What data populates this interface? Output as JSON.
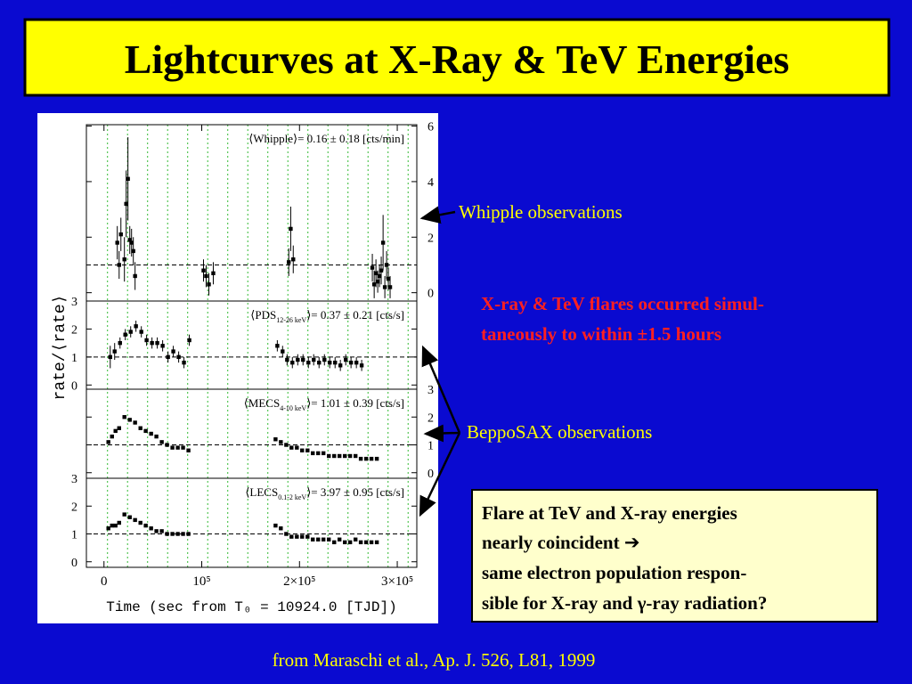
{
  "title": "Lightcurves at X-Ray & TeV Energies",
  "figure": {
    "y_label": "rate/⟨rate⟩",
    "x_label": "Time (sec from T₀ = 10924.0 [TJD])",
    "xlim": [
      -18000,
      320000
    ],
    "xticks": [
      0,
      {
        "value": 100000,
        "label": "10⁵"
      },
      {
        "value": 200000,
        "label": "2×10⁵"
      },
      {
        "value": 300000,
        "label": "3×10⁵"
      }
    ],
    "ref_line": 1,
    "guide_lines_x": [
      3600,
      24100,
      44600,
      65100,
      85600,
      106100,
      126600,
      147100,
      167600,
      188100,
      208600,
      229100,
      249600,
      270100,
      290600,
      311100
    ],
    "panels": [
      {
        "label_name": "⟨Whipple⟩= 0.16 ± 0.18 [cts/min]",
        "ylim": [
          -0.3,
          6.05
        ],
        "yticks": [
          0,
          2,
          4,
          6
        ],
        "tick_side": "right",
        "x": [
          13600,
          15500,
          17300,
          20900,
          22700,
          24500,
          26400,
          28200,
          30000,
          31800,
          101800,
          104500,
          107300,
          111800,
          189000,
          191000,
          193600,
          274500,
          276400,
          278200,
          280000,
          281800,
          283600,
          285500,
          287300,
          289100,
          290900,
          292700
        ],
        "values": [
          1.8,
          1.0,
          2.1,
          1.2,
          3.2,
          4.1,
          1.9,
          1.8,
          1.5,
          0.6,
          0.8,
          0.6,
          0.3,
          0.7,
          1.1,
          2.3,
          1.2,
          0.9,
          0.3,
          0.7,
          0.4,
          0.6,
          0.8,
          1.8,
          0.2,
          1.0,
          0.5,
          0.2
        ],
        "errors": [
          0.6,
          0.5,
          0.6,
          0.8,
          1.2,
          1.5,
          0.5,
          0.5,
          0.5,
          0.5,
          0.4,
          0.4,
          0.4,
          0.4,
          0.5,
          0.8,
          0.5,
          0.5,
          0.5,
          0.5,
          0.4,
          0.4,
          0.5,
          1.0,
          0.4,
          0.5,
          0.4,
          0.4
        ]
      },
      {
        "label_name": "⟨PDS",
        "label_sub": "12-26 keV",
        "label_rest": "⟩= 0.37 ± 0.21 [cts/s]",
        "ylim": [
          -0.15,
          3.0
        ],
        "yticks": [
          0,
          1,
          2,
          3
        ],
        "tick_side": "left",
        "x": [
          6400,
          10900,
          16400,
          21800,
          27300,
          32700,
          38200,
          43600,
          49100,
          54500,
          60000,
          65500,
          70900,
          76400,
          81800,
          87300,
          177300,
          182700,
          187300,
          192700,
          198200,
          203600,
          209100,
          214500,
          220000,
          225500,
          230900,
          236400,
          241800,
          247300,
          252700,
          258200,
          263600
        ],
        "values": [
          1.0,
          1.2,
          1.5,
          1.8,
          1.9,
          2.1,
          1.9,
          1.6,
          1.5,
          1.5,
          1.4,
          1.0,
          1.2,
          1.0,
          0.8,
          1.6,
          1.4,
          1.2,
          0.9,
          0.8,
          0.9,
          0.9,
          0.8,
          0.9,
          0.8,
          0.9,
          0.8,
          0.8,
          0.7,
          0.9,
          0.8,
          0.8,
          0.7
        ],
        "errors": [
          0.4,
          0.3,
          0.2,
          0.2,
          0.2,
          0.2,
          0.2,
          0.2,
          0.2,
          0.2,
          0.2,
          0.2,
          0.2,
          0.2,
          0.2,
          0.2,
          0.2,
          0.2,
          0.2,
          0.2,
          0.2,
          0.2,
          0.2,
          0.2,
          0.2,
          0.2,
          0.2,
          0.2,
          0.2,
          0.2,
          0.2,
          0.2,
          0.2
        ]
      },
      {
        "label_name": "⟨MECS",
        "label_sub": "4-10 keV",
        "label_rest": "⟩= 1.01 ± 0.39 [cts/s]",
        "ylim": [
          -0.2,
          3.0
        ],
        "yticks": [
          0,
          1,
          2,
          3
        ],
        "tick_side": "right",
        "x": [
          4500,
          8200,
          11800,
          15500,
          20900,
          26400,
          31800,
          37300,
          42700,
          48200,
          53600,
          59100,
          64500,
          70000,
          75500,
          80900,
          86400,
          175500,
          180900,
          186400,
          191800,
          197300,
          202700,
          208200,
          213600,
          219100,
          224500,
          230000,
          235500,
          240900,
          246400,
          251800,
          257300,
          262700,
          268200,
          273600,
          279100
        ],
        "values": [
          1.1,
          1.3,
          1.5,
          1.6,
          2.0,
          1.9,
          1.8,
          1.6,
          1.5,
          1.4,
          1.3,
          1.1,
          1.0,
          0.9,
          0.9,
          0.9,
          0.8,
          1.2,
          1.1,
          1.0,
          0.9,
          0.9,
          0.8,
          0.8,
          0.7,
          0.7,
          0.7,
          0.6,
          0.6,
          0.6,
          0.6,
          0.6,
          0.6,
          0.5,
          0.5,
          0.5,
          0.5
        ]
      },
      {
        "label_name": "⟨LECS",
        "label_sub": "0.1-2 keV",
        "label_rest": "⟩= 3.97 ± 0.95 [cts/s]",
        "ylim": [
          -0.2,
          3.0
        ],
        "yticks": [
          0,
          1,
          2,
          3
        ],
        "tick_side": "left",
        "x": [
          4500,
          8200,
          11800,
          15500,
          20900,
          26400,
          31800,
          37300,
          42700,
          48200,
          53600,
          59100,
          64500,
          70000,
          75500,
          80900,
          86400,
          175500,
          180900,
          186400,
          191800,
          197300,
          202700,
          208200,
          213600,
          219100,
          224500,
          230000,
          235500,
          240900,
          246400,
          251800,
          257300,
          262700,
          268200,
          273600,
          279100
        ],
        "values": [
          1.2,
          1.3,
          1.3,
          1.4,
          1.7,
          1.6,
          1.5,
          1.4,
          1.3,
          1.2,
          1.1,
          1.1,
          1.0,
          1.0,
          1.0,
          1.0,
          1.0,
          1.3,
          1.2,
          1.0,
          0.9,
          0.9,
          0.9,
          0.9,
          0.8,
          0.8,
          0.8,
          0.8,
          0.7,
          0.8,
          0.7,
          0.7,
          0.8,
          0.7,
          0.7,
          0.7,
          0.7
        ]
      }
    ]
  },
  "whipple_note": "Whipple observations",
  "flare_note": [
    "X-ray & TeV flares occurred simul-",
    "taneously to within ±1.5 hours"
  ],
  "beppo_note": "BeppoSAX observations",
  "box_lines": [
    "Flare at TeV and X-ray energies",
    "nearly coincident ➔",
    "same electron population respon-",
    "sible for X-ray and γ-ray radiation?"
  ],
  "citation": "from Maraschi et al., Ap. J. 526, L81, 1999"
}
